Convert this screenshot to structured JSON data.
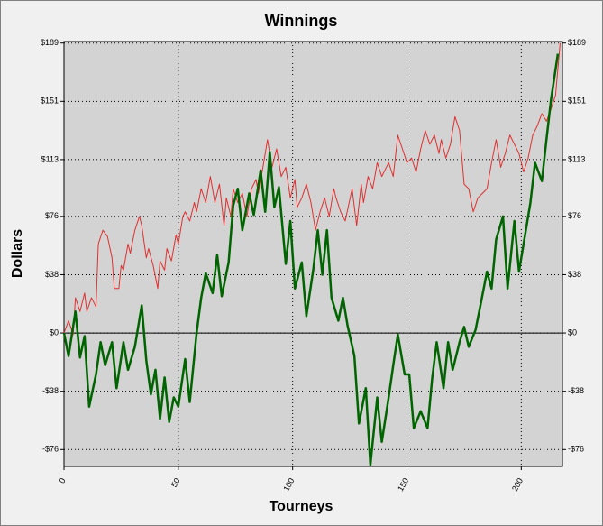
{
  "chart_data": {
    "type": "line",
    "title": "Winnings",
    "xlabel": "Tourneys",
    "ylabel": "Dollars",
    "xlim": [
      0,
      218
    ],
    "ylim": [
      -87,
      190
    ],
    "xticks": [
      0,
      50,
      100,
      150,
      200
    ],
    "yticks": [
      {
        "value": -76,
        "label": "-$76"
      },
      {
        "value": -38,
        "label": "-$38"
      },
      {
        "value": 0,
        "label": "$0"
      },
      {
        "value": 38,
        "label": "$38"
      },
      {
        "value": 76,
        "label": "$76"
      },
      {
        "value": 113,
        "label": "$113"
      },
      {
        "value": 151,
        "label": "$151"
      },
      {
        "value": 189,
        "label": "$189"
      }
    ],
    "grid": true,
    "series": [
      {
        "color": "#e03030",
        "width": 1,
        "x": [
          0,
          2,
          4,
          5,
          7,
          9,
          10,
          12,
          14,
          15,
          17,
          19,
          21,
          22,
          24,
          25,
          26,
          28,
          29,
          31,
          33,
          34,
          36,
          37,
          39,
          41,
          42,
          44,
          45,
          47,
          49,
          50,
          52,
          53,
          55,
          57,
          58,
          60,
          62,
          64,
          66,
          68,
          70,
          71,
          73,
          74,
          76,
          78,
          80,
          82,
          84,
          85,
          87,
          89,
          91,
          93,
          95,
          97,
          99,
          101,
          102,
          104,
          106,
          108,
          110,
          112,
          114,
          116,
          118,
          119,
          121,
          123,
          126,
          128,
          130,
          131,
          133,
          135,
          137,
          139,
          142,
          144,
          146,
          148,
          150,
          152,
          154,
          156,
          158,
          160,
          162,
          164,
          165,
          167,
          169,
          171,
          173,
          175,
          177,
          179,
          181,
          183,
          185,
          187,
          189,
          191,
          193,
          195,
          197,
          199,
          201,
          203,
          205,
          207,
          209,
          211,
          213,
          215,
          217
        ],
        "values": [
          0,
          8,
          -1,
          23,
          14,
          26,
          14,
          23,
          17,
          58,
          67,
          63,
          49,
          29,
          29,
          44,
          41,
          58,
          52,
          67,
          76,
          70,
          49,
          55,
          44,
          29,
          47,
          41,
          55,
          47,
          64,
          58,
          76,
          79,
          73,
          85,
          79,
          94,
          85,
          102,
          85,
          97,
          70,
          88,
          76,
          94,
          85,
          91,
          76,
          94,
          100,
          91,
          108,
          126,
          108,
          120,
          102,
          108,
          88,
          100,
          82,
          88,
          97,
          85,
          67,
          79,
          88,
          76,
          94,
          88,
          79,
          73,
          94,
          70,
          97,
          85,
          102,
          94,
          111,
          102,
          111,
          102,
          129,
          120,
          111,
          114,
          105,
          120,
          132,
          123,
          129,
          117,
          126,
          114,
          123,
          141,
          132,
          97,
          94,
          79,
          88,
          91,
          94,
          111,
          126,
          108,
          117,
          129,
          123,
          117,
          105,
          114,
          129,
          135,
          143,
          138,
          146,
          155,
          189
        ]
      },
      {
        "color": "#006400",
        "width": 2.5,
        "x": [
          0,
          2,
          5,
          7,
          9,
          11,
          14,
          16,
          18,
          21,
          23,
          26,
          28,
          31,
          34,
          36,
          38,
          40,
          42,
          44,
          46,
          48,
          50,
          53,
          55,
          58,
          60,
          62,
          65,
          67,
          69,
          72,
          74,
          76,
          78,
          81,
          83,
          86,
          88,
          90,
          92,
          94,
          97,
          99,
          101,
          104,
          106,
          109,
          111,
          113,
          115,
          117,
          120,
          122,
          124,
          127,
          129,
          132,
          134,
          137,
          139,
          142,
          144,
          146,
          149,
          151,
          153,
          156,
          159,
          161,
          163,
          166,
          168,
          170,
          173,
          175,
          177,
          180,
          182,
          185,
          187,
          189,
          192,
          194,
          197,
          199,
          202,
          204,
          206,
          209,
          211,
          213,
          216
        ],
        "values": [
          0,
          -15,
          14,
          -16,
          -2,
          -48,
          -27,
          -6,
          -21,
          -6,
          -36,
          -6,
          -24,
          -9,
          18,
          -18,
          -40,
          -24,
          -56,
          -29,
          -58,
          -42,
          -48,
          -17,
          -45,
          0,
          23,
          39,
          26,
          51,
          24,
          46,
          83,
          94,
          67,
          91,
          77,
          106,
          79,
          118,
          82,
          95,
          45,
          73,
          29,
          46,
          11,
          41,
          67,
          38,
          67,
          23,
          8,
          23,
          5,
          -15,
          -59,
          -36,
          -86,
          -42,
          -71,
          -42,
          -21,
          -1,
          -27,
          -27,
          -62,
          -51,
          -62,
          -30,
          -6,
          -36,
          -6,
          -24,
          -6,
          4,
          -9,
          2,
          17,
          40,
          29,
          61,
          76,
          29,
          73,
          40,
          67,
          85,
          111,
          99,
          126,
          152,
          182
        ]
      }
    ]
  }
}
